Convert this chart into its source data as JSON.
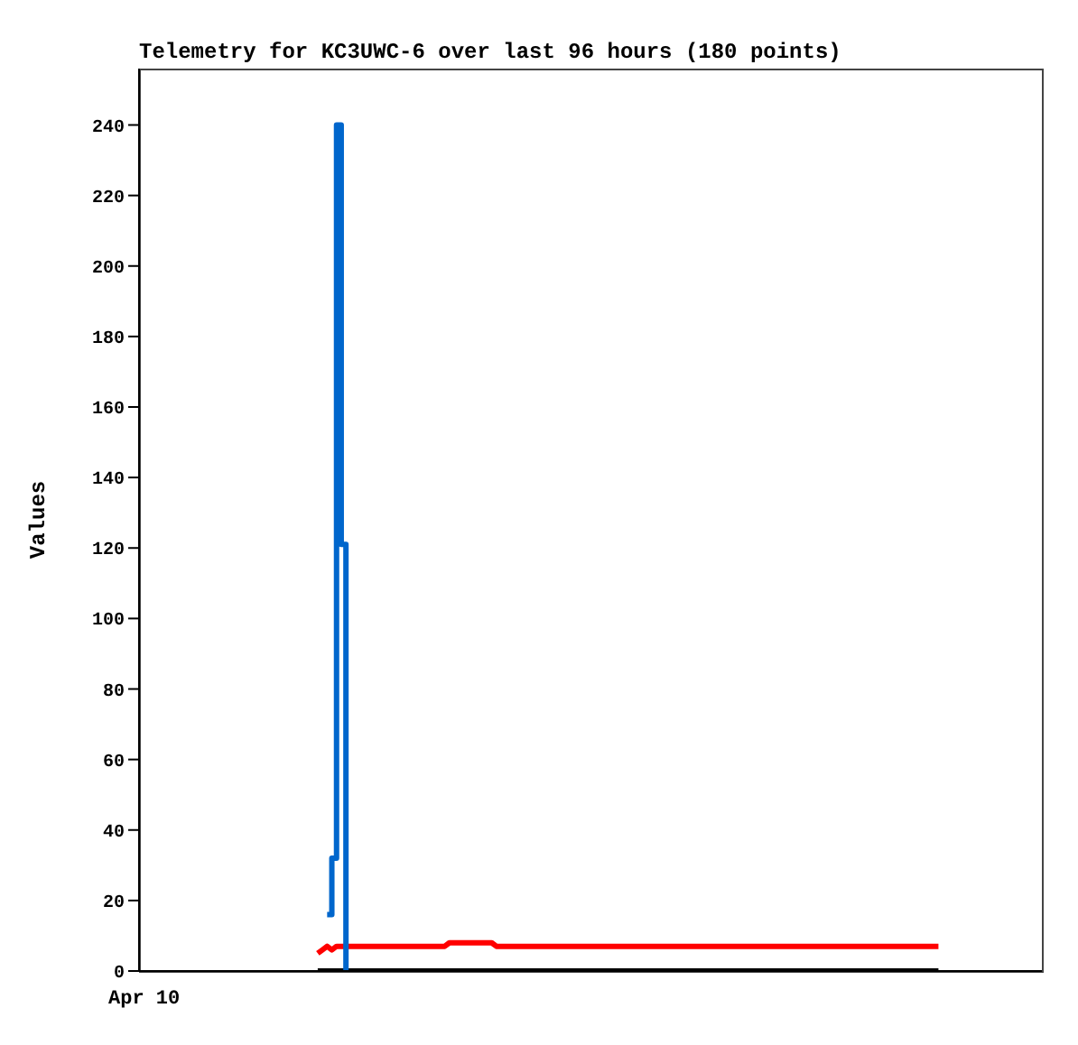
{
  "chart_data": {
    "type": "line",
    "title": "Telemetry for KC3UWC-6 over last 96 hours (180 points)",
    "ylabel": "Values",
    "annotations": [
      "Apr 10"
    ],
    "categories": [
      null,
      null,
      null,
      null,
      null,
      null,
      null,
      null,
      null,
      null,
      null,
      null,
      null,
      null,
      null,
      null,
      null,
      null,
      null,
      null,
      null,
      null,
      null,
      null,
      null,
      null,
      null,
      null,
      null,
      null,
      null,
      null,
      null,
      null,
      null,
      null,
      null,
      null,
      null,
      null,
      null,
      null,
      null,
      null,
      null,
      null,
      null,
      null,
      null,
      null,
      null,
      null,
      null,
      null,
      null,
      null,
      null,
      null,
      null,
      null,
      null,
      null,
      null,
      null,
      null,
      null,
      null,
      null,
      null,
      null,
      null,
      null,
      null,
      null,
      null,
      null,
      null,
      null,
      null,
      null,
      null,
      null,
      null,
      null,
      null,
      null,
      null,
      null,
      null,
      null,
      null,
      null,
      null,
      null,
      null,
      null,
      null,
      null,
      null,
      null,
      null,
      null,
      null,
      null,
      null,
      null,
      null,
      null,
      null,
      null,
      null,
      null,
      null,
      null,
      null,
      null,
      null,
      null,
      null,
      null,
      null,
      null,
      null,
      null,
      null,
      null,
      null,
      null,
      null,
      null,
      null,
      null,
      null,
      null,
      null,
      null,
      null,
      null,
      null,
      null,
      null,
      null,
      null,
      null,
      null,
      null,
      null,
      null,
      null,
      null,
      null,
      null,
      null,
      null,
      null,
      null,
      null,
      null,
      null,
      null,
      null,
      null,
      null,
      null,
      null,
      null,
      null,
      null,
      null,
      null,
      null,
      null,
      null,
      null,
      null,
      null,
      null,
      null,
      null,
      null,
      null,
      null,
      null,
      null,
      null,
      null,
      null,
      null,
      null,
      null,
      null,
      null,
      null
    ],
    "ylim": [
      0,
      256
    ],
    "yticks": [
      0,
      20,
      40,
      60,
      80,
      100,
      120,
      140,
      160,
      180,
      200,
      220,
      240
    ],
    "marker": "none",
    "line_style": "solid",
    "series": [
      {
        "color": "#000000",
        "values": [
          null,
          null,
          null,
          null,
          null,
          null,
          null,
          null,
          null,
          null,
          null,
          null,
          null,
          null,
          null,
          null,
          null,
          null,
          null,
          null,
          null,
          null,
          null,
          null,
          null,
          null,
          null,
          null,
          null,
          null,
          null,
          null,
          null,
          null,
          null,
          null,
          null,
          null,
          0,
          0,
          0,
          0,
          0,
          0,
          0,
          0,
          0,
          0,
          0,
          0,
          0,
          0,
          0,
          0,
          0,
          0,
          0,
          0,
          0,
          0,
          0,
          0,
          0,
          0,
          0,
          0,
          0,
          0,
          0,
          0,
          0,
          0,
          0,
          0,
          0,
          0,
          0,
          0,
          0,
          0,
          0,
          0,
          0,
          0,
          0,
          0,
          0,
          0,
          0,
          0,
          0,
          0,
          0,
          0,
          0,
          0,
          0,
          0,
          0,
          0,
          0,
          0,
          0,
          0,
          0,
          0,
          0,
          0,
          0,
          0,
          0,
          0,
          0,
          0,
          0,
          0,
          0,
          0,
          0,
          0,
          0,
          0,
          0,
          0,
          0,
          0,
          0,
          0,
          0,
          0,
          0,
          0,
          0,
          0,
          0,
          0,
          0,
          0,
          0,
          0,
          0,
          0,
          0,
          0,
          0,
          0,
          0,
          0,
          0,
          0,
          0,
          0,
          0,
          0,
          0,
          0,
          0,
          0,
          0,
          0,
          0,
          0,
          0,
          0,
          0,
          0,
          0,
          0,
          0,
          0,
          0,
          null,
          null,
          null,
          null,
          null,
          null,
          null,
          null,
          null,
          null,
          null,
          null,
          null,
          null,
          null,
          null,
          null,
          null,
          null,
          null,
          null,
          null
        ]
      },
      {
        "color": "#ff0000",
        "values": [
          null,
          null,
          null,
          null,
          null,
          null,
          null,
          null,
          null,
          null,
          null,
          null,
          null,
          null,
          null,
          null,
          null,
          null,
          null,
          null,
          null,
          null,
          null,
          null,
          null,
          null,
          null,
          null,
          null,
          null,
          null,
          null,
          null,
          null,
          null,
          null,
          null,
          null,
          5,
          6,
          7,
          6,
          7,
          7,
          7,
          7,
          7,
          7,
          7,
          7,
          7,
          7,
          7,
          7,
          7,
          7,
          7,
          7,
          7,
          7,
          7,
          7,
          7,
          7,
          7,
          7,
          8,
          8,
          8,
          8,
          8,
          8,
          8,
          8,
          8,
          8,
          7,
          7,
          7,
          7,
          7,
          7,
          7,
          7,
          7,
          7,
          7,
          7,
          7,
          7,
          7,
          7,
          7,
          7,
          7,
          7,
          7,
          7,
          7,
          7,
          7,
          7,
          7,
          7,
          7,
          7,
          7,
          7,
          7,
          7,
          7,
          7,
          7,
          7,
          7,
          7,
          7,
          7,
          7,
          7,
          7,
          7,
          7,
          7,
          7,
          7,
          7,
          7,
          7,
          7,
          7,
          7,
          7,
          7,
          7,
          7,
          7,
          7,
          7,
          7,
          7,
          7,
          7,
          7,
          7,
          7,
          7,
          7,
          7,
          7,
          7,
          7,
          7,
          7,
          7,
          7,
          7,
          7,
          7,
          7,
          7,
          7,
          7,
          7,
          7,
          7,
          7,
          7,
          7,
          7,
          7,
          null,
          null,
          null,
          null,
          null,
          null,
          null,
          null,
          null,
          null,
          null,
          null,
          null,
          null,
          null,
          null,
          null,
          null,
          null,
          null,
          null,
          null
        ]
      },
      {
        "type": "step",
        "color": "#0066cc",
        "values": [
          null,
          null,
          null,
          null,
          null,
          null,
          null,
          null,
          null,
          null,
          null,
          null,
          null,
          null,
          null,
          null,
          null,
          null,
          null,
          null,
          null,
          null,
          null,
          null,
          null,
          null,
          null,
          null,
          null,
          null,
          null,
          null,
          null,
          null,
          null,
          null,
          null,
          null,
          null,
          null,
          16,
          32,
          240,
          121,
          0,
          null,
          null,
          null,
          null,
          null,
          null,
          null,
          null,
          null,
          null,
          null,
          null,
          null,
          null,
          null,
          null,
          null,
          null,
          null,
          null,
          null,
          null,
          null,
          null,
          null,
          null,
          null,
          null,
          null,
          null,
          null,
          null,
          null,
          null,
          null,
          null,
          null,
          null,
          null,
          null,
          null,
          null,
          null,
          null,
          null,
          null,
          null,
          null,
          null,
          null,
          null,
          null,
          null,
          null,
          null,
          null,
          null,
          null,
          null,
          null,
          null,
          null,
          null,
          null,
          null,
          null,
          null,
          null,
          null,
          null,
          null,
          null,
          null,
          null,
          null,
          null,
          null,
          null,
          null,
          null,
          null,
          null,
          null,
          null,
          null,
          null,
          null,
          null,
          null,
          null,
          null,
          null,
          null,
          null,
          null,
          null,
          null,
          null,
          null,
          null,
          null,
          null,
          null,
          null,
          null,
          null,
          null,
          null,
          null,
          null,
          null,
          null,
          null,
          null,
          null,
          null,
          null,
          null,
          null,
          null,
          null,
          null,
          null,
          null,
          null,
          null,
          null,
          null,
          null,
          null,
          null,
          null,
          null,
          null,
          null,
          null,
          null,
          null,
          null,
          null,
          null,
          null,
          null,
          null,
          null,
          null,
          null,
          null
        ]
      }
    ]
  }
}
